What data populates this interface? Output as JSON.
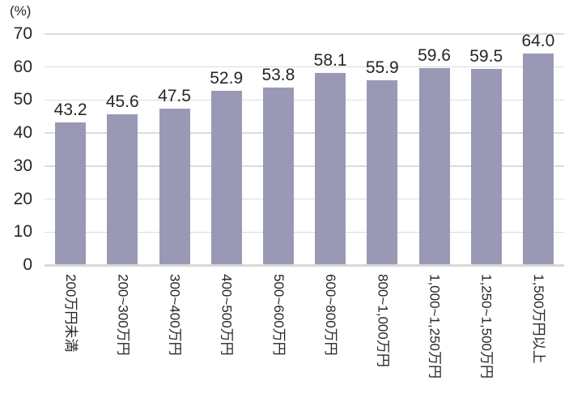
{
  "chart_data": {
    "type": "bar",
    "title": "",
    "unit_label": "(%)",
    "xlabel": "",
    "ylabel": "",
    "categories": [
      "200万円未満",
      "200~300万円",
      "300~400万円",
      "400~500万円",
      "500~600万円",
      "600~800万円",
      "800~1,000万円",
      "1,000~1,250万円",
      "1,250~1,500万円",
      "1,500万円以上"
    ],
    "values": [
      43.2,
      45.6,
      47.5,
      52.9,
      53.8,
      58.1,
      55.9,
      59.6,
      59.5,
      64.0
    ],
    "ylim": [
      0,
      70
    ],
    "y_ticks": [
      0,
      10,
      20,
      30,
      40,
      50,
      60,
      70
    ],
    "grid": true,
    "legend_position": "none",
    "bar_color": "#9a99b5",
    "text_color": "#262626",
    "gridline_color": "#dcdcdc",
    "axis_line_color": "#d9d9d9"
  }
}
